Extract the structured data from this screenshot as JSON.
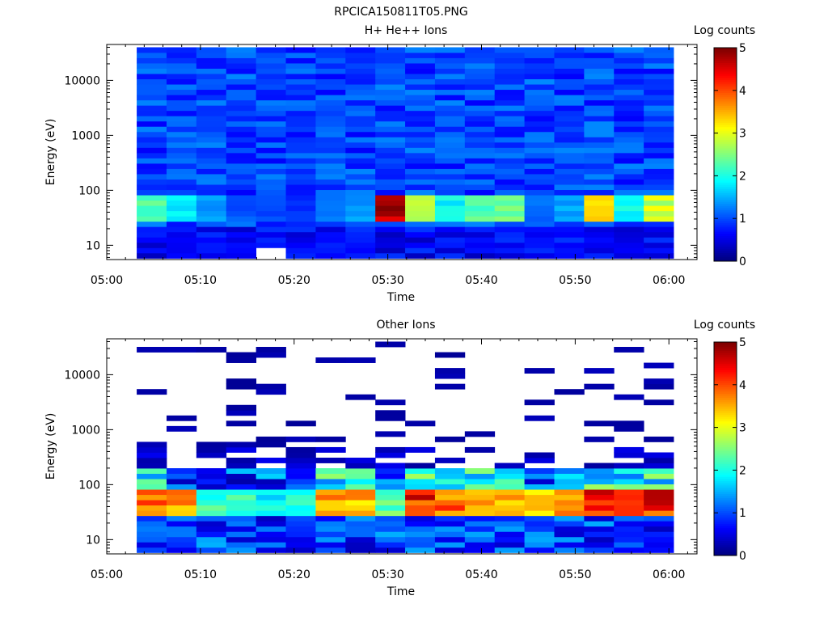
{
  "figure_title": "RPCICA150811T05.PNG",
  "chart_data": [
    {
      "type": "heatmap",
      "title": "H+ He++ Ions",
      "xlabel": "Time",
      "ylabel": "Energy (eV)",
      "colorbar_label": "Log counts",
      "x_ticks": [
        "05:00",
        "05:10",
        "05:20",
        "05:30",
        "05:40",
        "05:50",
        "06:00"
      ],
      "y_ticks": [
        "10",
        "100",
        "1000",
        "10000"
      ],
      "y_scale": "log",
      "ylim": [
        5.5,
        45000
      ],
      "xlim_minutes": [
        0,
        63
      ],
      "colorbar_ticks": [
        "0",
        "1",
        "2",
        "3",
        "4",
        "5"
      ],
      "clim": [
        0,
        5
      ],
      "data_span_minutes": [
        3.2,
        60.5
      ],
      "time_columns": 18,
      "energy_bins": 40,
      "notable_values": [
        {
          "time": "05:03-05:07",
          "energy_eV": "~50",
          "log_counts": 2.3
        },
        {
          "time": "05:30-05:33",
          "energy_eV": "~50",
          "log_counts": 5.0
        },
        {
          "time": "05:33-05:36",
          "energy_eV": "~55",
          "log_counts": 3.1
        },
        {
          "time": "05:52-05:55",
          "energy_eV": "~55",
          "log_counts": 3.3
        },
        {
          "time": "05:58-06:01",
          "energy_eV": "~50",
          "log_counts": 3.0
        }
      ]
    },
    {
      "type": "heatmap",
      "title": "Other Ions",
      "xlabel": "Time",
      "ylabel": "Energy (eV)",
      "colorbar_label": "Log counts",
      "x_ticks": [
        "05:00",
        "05:10",
        "05:20",
        "05:30",
        "05:40",
        "05:50",
        "06:00"
      ],
      "y_ticks": [
        "10",
        "100",
        "1000",
        "10000"
      ],
      "y_scale": "log",
      "ylim": [
        5.5,
        45000
      ],
      "xlim_minutes": [
        0,
        63
      ],
      "colorbar_ticks": [
        "0",
        "1",
        "2",
        "3",
        "4",
        "5"
      ],
      "clim": [
        0,
        5
      ],
      "data_span_minutes": [
        3.2,
        60.5
      ],
      "time_columns": 18,
      "energy_bins": 40,
      "notable_values": [
        {
          "time": "05:03-05:07",
          "energy_eV": "~50",
          "log_counts": 4.2
        },
        {
          "time": "05:33-05:36",
          "energy_eV": "~50",
          "log_counts": 4.6
        },
        {
          "time": "05:52-05:55",
          "energy_eV": "~50",
          "log_counts": 4.8
        },
        {
          "time": "05:58-06:01",
          "energy_eV": "~50",
          "log_counts": 4.6
        }
      ]
    }
  ]
}
